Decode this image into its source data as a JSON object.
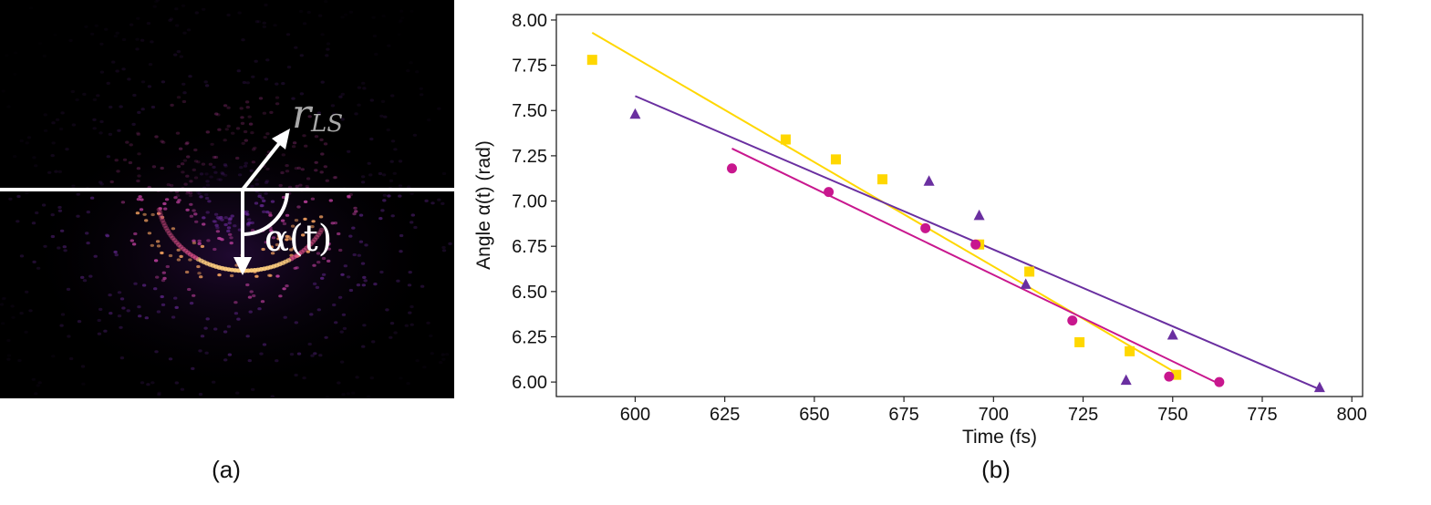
{
  "panel_a": {
    "label_r": "r",
    "label_r_sub": "LS",
    "label_alpha": "α(t)",
    "caption": "(a)"
  },
  "panel_b": {
    "caption": "(b)"
  },
  "chart_data": {
    "type": "scatter",
    "xlabel": "Time (fs)",
    "ylabel": "Angle α(t) (rad)",
    "xlim": [
      578,
      803
    ],
    "ylim": [
      5.92,
      8.03
    ],
    "x_ticks": [
      600,
      625,
      650,
      675,
      700,
      725,
      750,
      775,
      800
    ],
    "y_ticks": [
      6.0,
      6.25,
      6.5,
      6.75,
      7.0,
      7.25,
      7.5,
      7.75,
      8.0
    ],
    "grid": false,
    "series": [
      {
        "marker": "square",
        "color": "#FFD700",
        "points": [
          [
            588,
            7.78
          ],
          [
            642,
            7.34
          ],
          [
            656,
            7.23
          ],
          [
            669,
            7.12
          ],
          [
            696,
            6.76
          ],
          [
            710,
            6.61
          ],
          [
            724,
            6.22
          ],
          [
            738,
            6.17
          ],
          [
            751,
            6.04
          ]
        ],
        "fit": [
          [
            588,
            7.93
          ],
          [
            751,
            6.05
          ]
        ]
      },
      {
        "marker": "triangle",
        "color": "#6A2FA0",
        "points": [
          [
            600,
            7.48
          ],
          [
            682,
            7.11
          ],
          [
            696,
            6.92
          ],
          [
            709,
            6.54
          ],
          [
            737,
            6.01
          ],
          [
            750,
            6.26
          ],
          [
            791,
            5.97
          ]
        ],
        "fit": [
          [
            600,
            7.58
          ],
          [
            791,
            5.96
          ]
        ]
      },
      {
        "marker": "circle",
        "color": "#C8178E",
        "points": [
          [
            627,
            7.18
          ],
          [
            654,
            7.05
          ],
          [
            681,
            6.85
          ],
          [
            695,
            6.76
          ],
          [
            722,
            6.34
          ],
          [
            749,
            6.03
          ],
          [
            763,
            6.0
          ]
        ],
        "fit": [
          [
            627,
            7.29
          ],
          [
            763,
            5.99
          ]
        ]
      }
    ]
  }
}
